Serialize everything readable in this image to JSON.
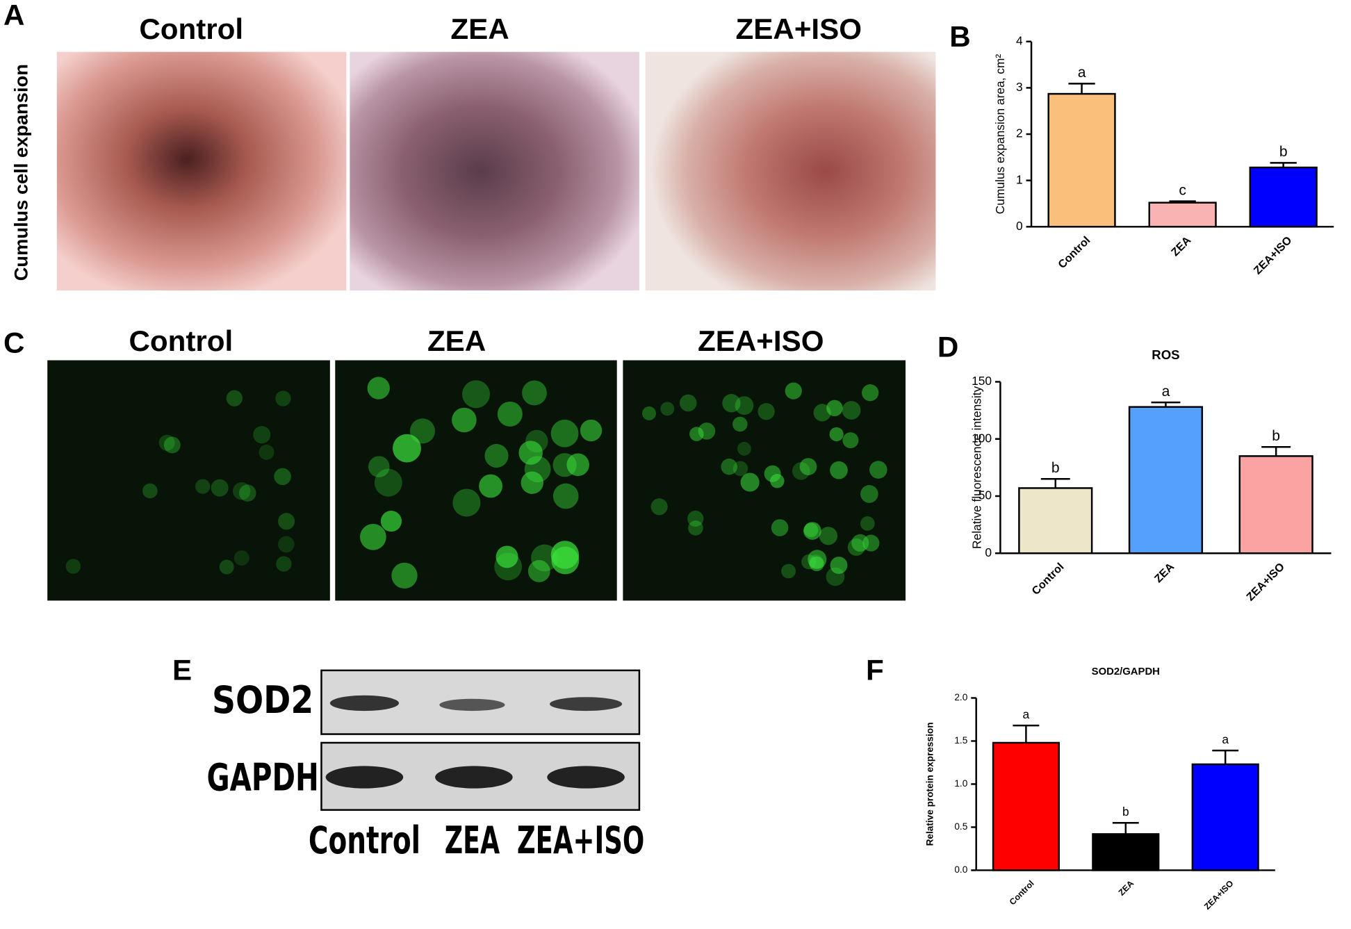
{
  "panel_labels": [
    "A",
    "B",
    "C",
    "D",
    "E",
    "F"
  ],
  "panel_a": {
    "row_label": "Cumulus cell expansion",
    "titles": [
      "Control",
      "ZEA",
      "ZEA+ISO"
    ]
  },
  "panel_c": {
    "titles": [
      "Control",
      "ZEA",
      "ZEA+ISO"
    ]
  },
  "panel_e": {
    "bands": [
      "SOD2",
      "GAPDH"
    ],
    "lanes": [
      "Control",
      "ZEA",
      "ZEA+ISO"
    ]
  },
  "chart_data": [
    {
      "type": "bar",
      "ylabel": "Cumulus expansion area, cm²",
      "categories": [
        "Control",
        "ZEA",
        "ZEA+ISO"
      ],
      "values": [
        2.87,
        0.52,
        1.28
      ],
      "errors": [
        0.22,
        0.03,
        0.1
      ],
      "annotations": [
        "a",
        "c",
        "b"
      ],
      "colors": [
        "#fbbf7c",
        "#f9b3b3",
        "#0000ff"
      ],
      "ylim": [
        0,
        4
      ],
      "yticks": [
        0,
        1,
        2,
        3,
        4
      ]
    },
    {
      "type": "bar",
      "title": "ROS",
      "ylabel": "Relative  fluorescence intensity",
      "categories": [
        "Control",
        "ZEA",
        "ZEA+ISO"
      ],
      "values": [
        57,
        128,
        85
      ],
      "errors": [
        8,
        4,
        8
      ],
      "annotations": [
        "b",
        "a",
        "b"
      ],
      "colors": [
        "#ede6c8",
        "#55a0fb",
        "#fba3a3"
      ],
      "ylim": [
        0,
        150
      ],
      "yticks": [
        0,
        50,
        100,
        150
      ]
    },
    {
      "type": "bar",
      "title": "SOD2/GAPDH",
      "ylabel": "Relative protein expression",
      "categories": [
        "Control",
        "ZEA",
        "ZEA+ISO"
      ],
      "values": [
        1.48,
        0.42,
        1.23
      ],
      "errors": [
        0.2,
        0.13,
        0.16
      ],
      "annotations": [
        "a",
        "b",
        "a"
      ],
      "colors": [
        "#ff0000",
        "#000000",
        "#0000ff"
      ],
      "ylim": [
        0,
        2
      ],
      "yticks": [
        {
          "value": 0,
          "label": "0.0"
        },
        {
          "value": 0.5,
          "label": "0.5"
        },
        {
          "value": 1,
          "label": "1.0"
        },
        {
          "value": 1.5,
          "label": "1.5"
        },
        {
          "value": 2,
          "label": "2.0"
        }
      ]
    }
  ]
}
